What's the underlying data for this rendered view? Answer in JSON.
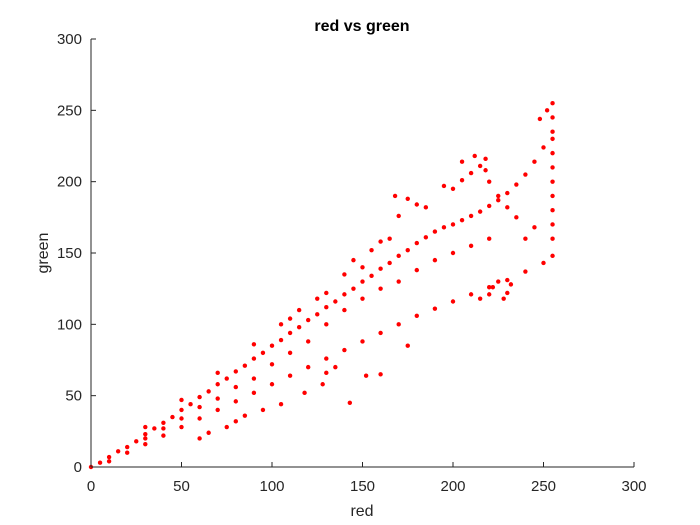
{
  "chart_data": {
    "type": "scatter",
    "title": "red vs green",
    "xlabel": "red",
    "ylabel": "green",
    "xlim": [
      0,
      300
    ],
    "ylim": [
      0,
      300
    ],
    "xticks": [
      0,
      50,
      100,
      150,
      200,
      250,
      300
    ],
    "yticks": [
      0,
      50,
      100,
      150,
      200,
      250,
      300
    ],
    "xtick_labels": [
      "0",
      "50",
      "100",
      "150",
      "200",
      "250",
      "300"
    ],
    "ytick_labels": [
      "0",
      "50",
      "100",
      "150",
      "200",
      "250",
      "300"
    ],
    "grid": false,
    "marker_color": "#ff0000",
    "series": [
      {
        "points": [
          [
            0,
            0
          ],
          [
            5,
            3
          ],
          [
            10,
            7
          ],
          [
            15,
            11
          ],
          [
            20,
            14
          ],
          [
            25,
            18
          ],
          [
            30,
            23
          ],
          [
            35,
            27
          ],
          [
            40,
            31
          ],
          [
            45,
            35
          ],
          [
            50,
            40
          ],
          [
            55,
            44
          ],
          [
            60,
            49
          ],
          [
            65,
            53
          ],
          [
            70,
            58
          ],
          [
            75,
            62
          ],
          [
            80,
            67
          ],
          [
            85,
            71
          ],
          [
            90,
            76
          ],
          [
            95,
            80
          ],
          [
            100,
            85
          ],
          [
            105,
            89
          ],
          [
            110,
            94
          ],
          [
            115,
            98
          ],
          [
            120,
            103
          ],
          [
            125,
            107
          ],
          [
            130,
            112
          ],
          [
            135,
            116
          ],
          [
            140,
            121
          ],
          [
            145,
            125
          ],
          [
            150,
            130
          ],
          [
            155,
            134
          ],
          [
            160,
            139
          ],
          [
            165,
            143
          ],
          [
            170,
            148
          ],
          [
            175,
            152
          ],
          [
            180,
            157
          ],
          [
            185,
            161
          ],
          [
            190,
            165
          ],
          [
            195,
            168
          ],
          [
            200,
            170
          ],
          [
            205,
            173
          ],
          [
            210,
            176
          ],
          [
            215,
            179
          ],
          [
            220,
            183
          ],
          [
            225,
            187
          ],
          [
            230,
            192
          ],
          [
            235,
            198
          ],
          [
            240,
            205
          ],
          [
            245,
            214
          ],
          [
            250,
            224
          ],
          [
            255,
            235
          ],
          [
            255,
            245
          ],
          [
            255,
            255
          ],
          [
            252,
            250
          ],
          [
            248,
            244
          ],
          [
            10,
            4
          ],
          [
            20,
            10
          ],
          [
            30,
            16
          ],
          [
            40,
            22
          ],
          [
            50,
            28
          ],
          [
            60,
            34
          ],
          [
            70,
            40
          ],
          [
            80,
            46
          ],
          [
            90,
            52
          ],
          [
            100,
            58
          ],
          [
            110,
            64
          ],
          [
            120,
            70
          ],
          [
            130,
            76
          ],
          [
            140,
            82
          ],
          [
            150,
            88
          ],
          [
            160,
            94
          ],
          [
            170,
            100
          ],
          [
            180,
            106
          ],
          [
            190,
            111
          ],
          [
            200,
            116
          ],
          [
            210,
            121
          ],
          [
            220,
            126
          ],
          [
            230,
            131
          ],
          [
            240,
            137
          ],
          [
            250,
            143
          ],
          [
            255,
            148
          ],
          [
            30,
            28
          ],
          [
            50,
            47
          ],
          [
            70,
            66
          ],
          [
            90,
            86
          ],
          [
            110,
            104
          ],
          [
            130,
            122
          ],
          [
            150,
            140
          ],
          [
            160,
            158
          ],
          [
            170,
            176
          ],
          [
            175,
            188
          ],
          [
            180,
            184
          ],
          [
            168,
            190
          ],
          [
            185,
            182
          ],
          [
            195,
            197
          ],
          [
            200,
            195
          ],
          [
            205,
            201
          ],
          [
            210,
            206
          ],
          [
            215,
            211
          ],
          [
            218,
            216
          ],
          [
            212,
            218
          ],
          [
            205,
            214
          ],
          [
            225,
            130
          ],
          [
            230,
            122
          ],
          [
            228,
            118
          ],
          [
            220,
            121
          ],
          [
            222,
            126
          ],
          [
            215,
            118
          ],
          [
            232,
            128
          ],
          [
            135,
            70
          ],
          [
            130,
            66
          ],
          [
            160,
            65
          ],
          [
            152,
            64
          ],
          [
            143,
            45
          ],
          [
            128,
            58
          ],
          [
            118,
            52
          ],
          [
            175,
            85
          ],
          [
            60,
            20
          ],
          [
            65,
            24
          ],
          [
            80,
            32
          ],
          [
            95,
            40
          ],
          [
            105,
            44
          ],
          [
            75,
            28
          ],
          [
            85,
            36
          ],
          [
            255,
            160
          ],
          [
            255,
            170
          ],
          [
            255,
            180
          ],
          [
            255,
            190
          ],
          [
            255,
            200
          ],
          [
            255,
            210
          ],
          [
            255,
            220
          ],
          [
            255,
            230
          ],
          [
            240,
            160
          ],
          [
            245,
            168
          ],
          [
            235,
            175
          ],
          [
            230,
            182
          ],
          [
            225,
            190
          ],
          [
            220,
            200
          ],
          [
            218,
            208
          ],
          [
            130,
            100
          ],
          [
            140,
            110
          ],
          [
            150,
            118
          ],
          [
            160,
            125
          ],
          [
            170,
            130
          ],
          [
            180,
            138
          ],
          [
            190,
            145
          ],
          [
            200,
            150
          ],
          [
            210,
            155
          ],
          [
            220,
            160
          ],
          [
            100,
            72
          ],
          [
            110,
            80
          ],
          [
            120,
            88
          ],
          [
            90,
            62
          ],
          [
            80,
            56
          ],
          [
            70,
            48
          ],
          [
            60,
            42
          ],
          [
            50,
            34
          ],
          [
            40,
            27
          ],
          [
            30,
            20
          ],
          [
            145,
            145
          ],
          [
            155,
            152
          ],
          [
            165,
            160
          ],
          [
            140,
            135
          ],
          [
            125,
            118
          ],
          [
            115,
            110
          ],
          [
            105,
            100
          ]
        ]
      }
    ]
  }
}
